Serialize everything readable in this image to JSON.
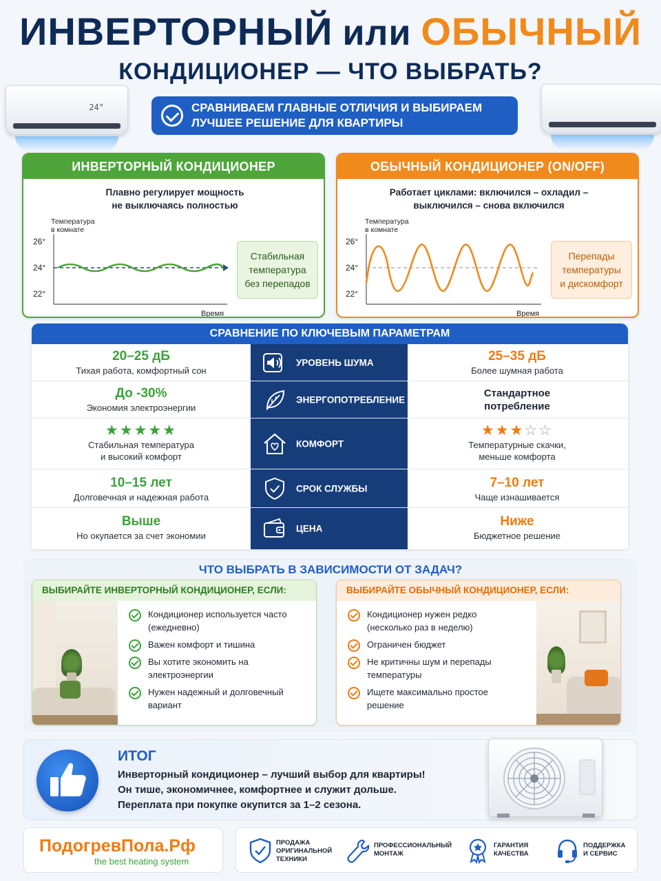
{
  "header": {
    "title_part1": "ИНВЕРТОРНЫЙ",
    "title_part2": "или",
    "title_part3": "ОБЫЧНЫЙ",
    "title_line2": "КОНДИЦИОНЕР — ЧТО ВЫБРАТЬ?",
    "ac_display": "24°",
    "subtitle_line1": "СРАВНИВАЕМ ГЛАВНЫЕ ОТЛИЧИЯ И ВЫБИРАЕМ",
    "subtitle_line2": "ЛУЧШЕЕ РЕШЕНИЕ ДЛЯ КВАРТИРЫ"
  },
  "inverter_panel": {
    "title": "ИНВЕРТОРНЫЙ КОНДИЦИОНЕР",
    "desc_line1": "Плавно регулирует мощность",
    "desc_line2": "не выключаясь полностью",
    "ylabel_line1": "Температура",
    "ylabel_line2": "в комнате",
    "xlabel": "Время",
    "ticks": [
      "26°",
      "24°",
      "22°"
    ],
    "note_line1": "Стабильная",
    "note_line2": "температура",
    "note_line3": "без перепадов",
    "color": "#4ea53a"
  },
  "regular_panel": {
    "title": "ОБЫЧНЫЙ КОНДИЦИОНЕР (ON/OFF)",
    "desc_line1": "Работает циклами: включился – охладил –",
    "desc_line2": "выключился – снова включился",
    "ylabel_line1": "Температура",
    "ylabel_line2": "в комнате",
    "xlabel": "Время",
    "ticks": [
      "26°",
      "24°",
      "22°"
    ],
    "note_line1": "Перепады",
    "note_line2": "температуры",
    "note_line3": "и дискомфорт",
    "color": "#f08a1c"
  },
  "comparison": {
    "title": "СРАВНЕНИЕ ПО КЛЮЧЕВЫМ ПАРАМЕТРАМ",
    "rows": [
      {
        "param": "УРОВЕНЬ ШУМА",
        "icon": "speaker-icon",
        "inv_value": "20–25 дБ",
        "inv_desc": "Тихая работа, комфортный сон",
        "reg_value": "25–35 дБ",
        "reg_desc": "Более шумная работа"
      },
      {
        "param": "ЭНЕРГОПОТРЕБЛЕНИЕ",
        "icon": "leaf-icon",
        "inv_value": "До -30%",
        "inv_desc": "Экономия электроэнергии",
        "reg_value_line1": "Стандартное",
        "reg_value_line2": "потребление"
      },
      {
        "param": "КОМФОРТ",
        "icon": "house-heart-icon",
        "inv_stars": "★★★★★",
        "inv_rating": 5,
        "inv_desc_line1": "Стабильная температура",
        "inv_desc_line2": "и высокий комфорт",
        "reg_stars_full": "★★★",
        "reg_stars_empty": "☆☆",
        "reg_rating": 3,
        "reg_desc_line1": "Температурные скачки,",
        "reg_desc_line2": "меньше комфорта"
      },
      {
        "param": "СРОК СЛУЖБЫ",
        "icon": "shield-icon",
        "inv_value": "10–15 лет",
        "inv_desc": "Долговечная и надежная работа",
        "reg_value": "7–10 лет",
        "reg_desc": "Чаще изнашивается"
      },
      {
        "param": "ЦЕНА",
        "icon": "wallet-icon",
        "inv_value": "Выше",
        "inv_desc": "Но окупается за счет экономии",
        "reg_value": "Ниже",
        "reg_desc": "Бюджетное решение"
      }
    ]
  },
  "choose": {
    "title": "ЧТО ВЫБРАТЬ В ЗАВИСИМОСТИ ОТ ЗАДАЧ?",
    "inverter": {
      "heading": "ВЫБИРАЙТЕ ИНВЕРТОРНЫЙ КОНДИЦИОНЕР, ЕСЛИ:",
      "items": [
        [
          "Кондиционер используется часто",
          "(ежедневно)"
        ],
        [
          "Важен комфорт и тишина",
          ""
        ],
        [
          "Вы хотите экономить на",
          "электроэнергии"
        ],
        [
          "Нужен надежный и долговечный",
          "вариант"
        ]
      ]
    },
    "regular": {
      "heading": "ВЫБИРАЙТЕ ОБЫЧНЫЙ КОНДИЦИОНЕР, ЕСЛИ:",
      "items": [
        [
          "Кондиционер нужен редко",
          "(несколько раз в неделю)"
        ],
        [
          "Ограничен бюджет",
          ""
        ],
        [
          "Не критичны шум и перепады",
          "температуры"
        ],
        [
          "Ищете максимально простое",
          "решение"
        ]
      ]
    }
  },
  "result": {
    "heading": "ИТОГ",
    "line1": "Инверторный кондиционер – лучший выбор для квартиры!",
    "line2": "Он тише, экономичнее, комфортнее и служит дольше.",
    "line3": "Переплата при покупке окупится за 1–2 сезона."
  },
  "footer": {
    "brand": "ПодогревПола.Рф",
    "tagline": "the best heating system",
    "features": [
      {
        "icon": "shield-check-icon",
        "line1": "ПРОДАЖА",
        "line2": "ОРИГИНАЛЬНОЙ",
        "line3": "ТЕХНИКИ"
      },
      {
        "icon": "wrench-icon",
        "line1": "ПРОФЕССИОНАЛЬНЫЙ",
        "line2": "МОНТАЖ",
        "line3": ""
      },
      {
        "icon": "award-icon",
        "line1": "ГАРАНТИЯ",
        "line2": "КАЧЕСТВА",
        "line3": ""
      },
      {
        "icon": "headset-icon",
        "line1": "ПОДДЕРЖКА",
        "line2": "И СЕРВИС",
        "line3": ""
      }
    ]
  },
  "colors": {
    "navy": "#0e2b57",
    "blue": "#1f5fc4",
    "dark_blue": "#163d7a",
    "green": "#3aa23a",
    "orange": "#f07b10"
  }
}
